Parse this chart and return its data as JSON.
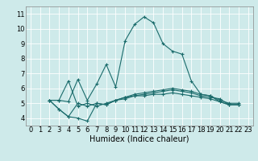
{
  "title": "",
  "xlabel": "Humidex (Indice chaleur)",
  "bg_color": "#ceeaea",
  "grid_color": "#ffffff",
  "line_color": "#1a6b6b",
  "xlim": [
    -0.5,
    23.5
  ],
  "ylim": [
    3.5,
    11.5
  ],
  "xticks": [
    0,
    1,
    2,
    3,
    4,
    5,
    6,
    7,
    8,
    9,
    10,
    11,
    12,
    13,
    14,
    15,
    16,
    17,
    18,
    19,
    20,
    21,
    22,
    23
  ],
  "yticks": [
    4,
    5,
    6,
    7,
    8,
    9,
    10,
    11
  ],
  "series": [
    {
      "x": [
        2,
        3,
        4,
        5,
        6,
        7,
        8,
        9,
        10,
        11,
        12,
        13,
        14,
        15,
        16,
        17,
        18,
        19,
        20,
        21,
        22
      ],
      "y": [
        5.2,
        5.2,
        5.1,
        6.6,
        5.2,
        6.3,
        7.6,
        6.1,
        9.2,
        10.3,
        10.8,
        10.4,
        9.0,
        8.5,
        8.3,
        6.5,
        5.6,
        5.5,
        5.1,
        4.9,
        4.9
      ]
    },
    {
      "x": [
        2,
        3,
        4,
        5,
        6,
        7,
        8,
        9,
        10,
        11,
        12,
        13,
        14,
        15,
        16,
        17,
        18,
        19,
        20,
        21,
        22
      ],
      "y": [
        5.2,
        4.6,
        4.1,
        5.0,
        4.8,
        5.0,
        4.9,
        5.2,
        5.3,
        5.5,
        5.5,
        5.6,
        5.6,
        5.7,
        5.6,
        5.5,
        5.4,
        5.3,
        5.1,
        4.9,
        4.9
      ]
    },
    {
      "x": [
        2,
        3,
        4,
        5,
        6,
        7,
        8,
        9,
        10,
        11,
        12,
        13,
        14,
        15,
        16,
        17,
        18,
        19,
        20,
        21,
        22
      ],
      "y": [
        5.2,
        4.6,
        4.1,
        4.0,
        3.8,
        5.0,
        4.9,
        5.2,
        5.4,
        5.5,
        5.6,
        5.7,
        5.8,
        5.9,
        5.8,
        5.7,
        5.5,
        5.4,
        5.3,
        4.9,
        4.9
      ]
    },
    {
      "x": [
        2,
        3,
        4,
        5,
        6,
        7,
        8,
        9,
        10,
        11,
        12,
        13,
        14,
        15,
        16,
        17,
        18,
        19,
        20,
        21,
        22
      ],
      "y": [
        5.2,
        5.2,
        6.5,
        4.8,
        5.0,
        4.8,
        5.0,
        5.2,
        5.4,
        5.6,
        5.7,
        5.8,
        5.9,
        6.0,
        5.9,
        5.8,
        5.6,
        5.5,
        5.2,
        5.0,
        5.0
      ]
    }
  ],
  "tick_fontsize": 6,
  "xlabel_fontsize": 7
}
